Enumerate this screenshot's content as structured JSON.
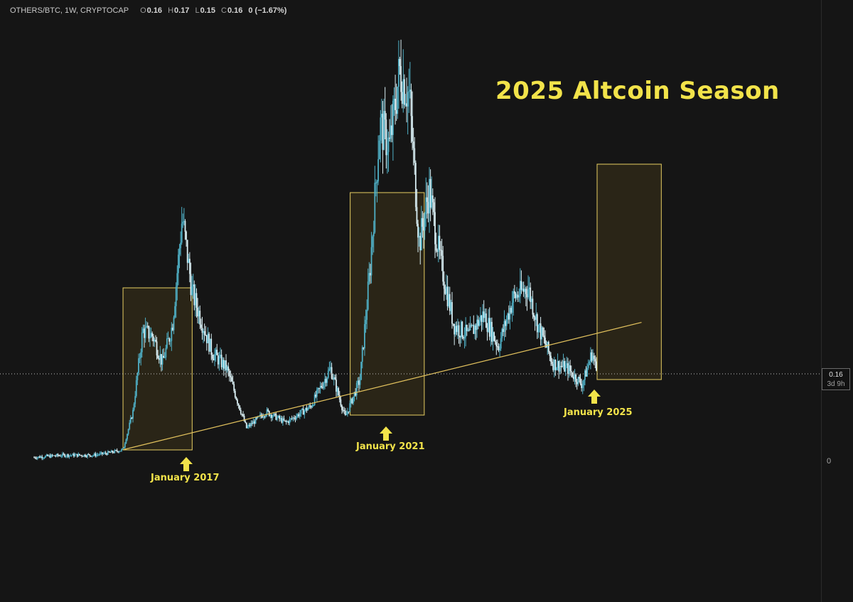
{
  "header": {
    "symbol": "OTHERS/BTC, 1W, CRYPTOCAP",
    "open_label": "O",
    "open": "0.16",
    "high_label": "H",
    "high": "0.17",
    "low_label": "L",
    "low": "0.15",
    "close_label": "C",
    "close": "0.16",
    "change": "0 (−1.67%)"
  },
  "price_axis": {
    "zero_label": "0",
    "current_price": "0.16",
    "countdown": "3d 9h"
  },
  "title": "2025 Altcoin Season",
  "annotations": {
    "jan2017": "January 2017",
    "jan2021": "January 2021",
    "jan2025": "January 2025"
  },
  "colors": {
    "background": "#151515",
    "candles": "#4fb0c6",
    "candles_light": "#d9eef3",
    "highlight_box": "#e8cf62",
    "trendline": "#e4c35e",
    "title": "#f2e34a"
  },
  "chart_data": {
    "type": "line",
    "title": "2025 Altcoin Season",
    "xlabel": "",
    "ylabel": "",
    "grid": false,
    "series": [
      {
        "name": "OTHERS/BTC",
        "x": [
          "2015-07",
          "2016-01",
          "2016-07",
          "2016-10",
          "2017-01",
          "2017-03",
          "2017-05",
          "2017-07",
          "2017-09",
          "2017-11",
          "2018-01",
          "2018-03",
          "2018-07",
          "2018-10",
          "2019-02",
          "2019-06",
          "2019-10",
          "2020-03",
          "2020-07",
          "2020-10",
          "2021-01",
          "2021-03",
          "2021-05",
          "2021-07",
          "2021-09",
          "2021-11",
          "2022-01",
          "2022-03",
          "2022-05",
          "2022-08",
          "2022-11",
          "2023-02",
          "2023-05",
          "2023-08",
          "2023-11",
          "2024-01",
          "2024-04",
          "2024-07",
          "2024-10",
          "2024-12",
          "2025-01"
        ],
        "y": [
          0.006,
          0.01,
          0.01,
          0.014,
          0.02,
          0.09,
          0.24,
          0.23,
          0.18,
          0.25,
          0.45,
          0.31,
          0.2,
          0.17,
          0.06,
          0.09,
          0.07,
          0.1,
          0.17,
          0.08,
          0.15,
          0.35,
          0.62,
          0.58,
          0.72,
          0.67,
          0.4,
          0.5,
          0.38,
          0.25,
          0.23,
          0.27,
          0.21,
          0.3,
          0.32,
          0.25,
          0.18,
          0.17,
          0.14,
          0.2,
          0.16
        ]
      }
    ],
    "trendline": {
      "from": [
        "2017-01",
        0.02
      ],
      "to": [
        "2025-10",
        0.255
      ]
    },
    "highlight_boxes": [
      {
        "from": "2017-01",
        "to": "2018-03"
      },
      {
        "from": "2020-11",
        "to": "2022-02"
      },
      {
        "from": "2025-01",
        "to": "2026-02"
      }
    ],
    "current_price": 0.16
  }
}
